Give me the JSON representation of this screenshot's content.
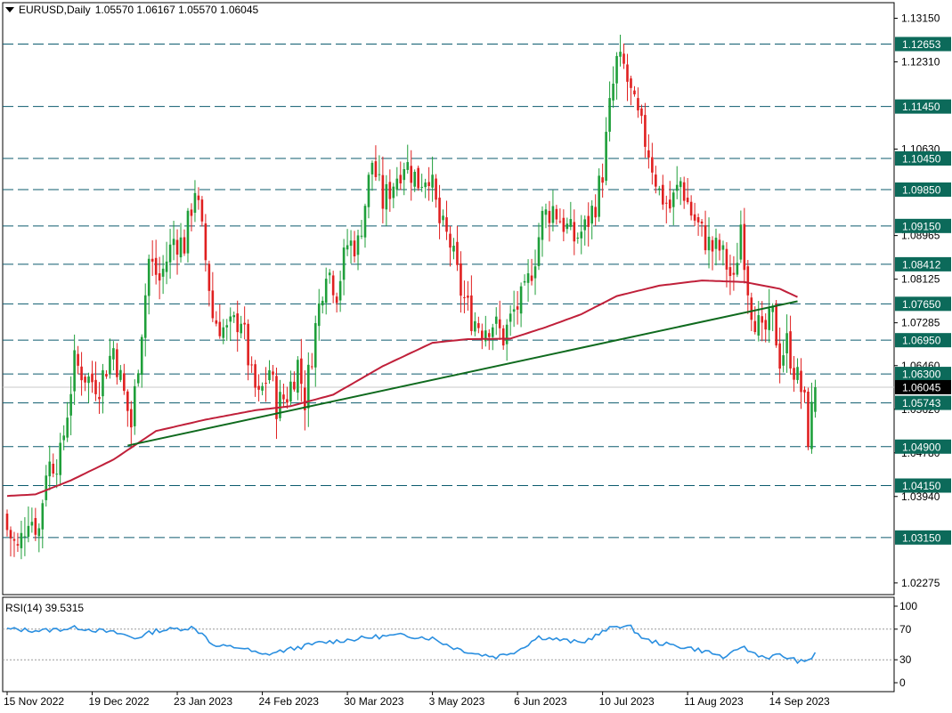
{
  "header": {
    "symbol": "EURUSD,Daily",
    "ohlc": "1.05570 1.06167 1.05570 1.06045"
  },
  "rsi_header": {
    "label": "RSI(14) 39.5315"
  },
  "colors": {
    "bull": "#1f9f3a",
    "bear": "#e02020",
    "ma": "#c0203a",
    "trendline": "#0f6a1e",
    "levels": "#0c5b6e",
    "rsi": "#2a8fe0",
    "level_box": "#0c6a5a",
    "price_box": "#000000"
  },
  "chart_data": [
    {
      "type": "candlestick",
      "title": "EURUSD,Daily",
      "ylim": [
        1.0205,
        1.1345
      ],
      "y_ticks": [
        "1.13150",
        "1.12310",
        "1.10630",
        "1.08965",
        "1.08125",
        "1.07285",
        "1.06460",
        "1.05620",
        "1.04780",
        "1.03940",
        "1.02275"
      ],
      "x_ticks": [
        "15 Nov 2022",
        "19 Dec 2022",
        "23 Jan 2023",
        "24 Feb 2023",
        "30 Mar 2023",
        "3 May 2023",
        "6 Jun 2023",
        "10 Jul 2023",
        "11 Aug 2023",
        "14 Sep 2023"
      ],
      "x_tick_days": [
        0,
        24,
        48,
        72,
        96,
        120,
        144,
        168,
        192,
        216
      ],
      "horizontal_levels": [
        {
          "value": 1.12653,
          "label": "1.12653"
        },
        {
          "value": 1.1145,
          "label": "1.11450"
        },
        {
          "value": 1.1045,
          "label": "1.10450"
        },
        {
          "value": 1.0985,
          "label": "1.09850"
        },
        {
          "value": 1.0915,
          "label": "1.09150"
        },
        {
          "value": 1.08412,
          "label": "1.08412"
        },
        {
          "value": 1.0765,
          "label": "1.07650"
        },
        {
          "value": 1.0695,
          "label": "1.06950"
        },
        {
          "value": 1.063,
          "label": "1.06300"
        },
        {
          "value": 1.05743,
          "label": "1.05743"
        },
        {
          "value": 1.049,
          "label": "1.04900"
        },
        {
          "value": 1.0415,
          "label": "1.04150"
        },
        {
          "value": 1.0315,
          "label": "1.03150"
        }
      ],
      "current_price": {
        "value": 1.06045,
        "label": "1.06045"
      },
      "trendline": {
        "start": {
          "day": 34,
          "price": 1.0492
        },
        "end": {
          "day": 223,
          "price": 1.077
        }
      },
      "moving_average_anchors": [
        {
          "day": 0,
          "price": 1.0395
        },
        {
          "day": 8,
          "price": 1.0398
        },
        {
          "day": 18,
          "price": 1.0425
        },
        {
          "day": 30,
          "price": 1.0465
        },
        {
          "day": 42,
          "price": 1.052
        },
        {
          "day": 56,
          "price": 1.0542
        },
        {
          "day": 70,
          "price": 1.056
        },
        {
          "day": 80,
          "price": 1.0568
        },
        {
          "day": 92,
          "price": 1.059
        },
        {
          "day": 106,
          "price": 1.0645
        },
        {
          "day": 120,
          "price": 1.069
        },
        {
          "day": 130,
          "price": 1.0697
        },
        {
          "day": 142,
          "price": 1.0698
        },
        {
          "day": 152,
          "price": 1.072
        },
        {
          "day": 162,
          "price": 1.0745
        },
        {
          "day": 172,
          "price": 1.078
        },
        {
          "day": 184,
          "price": 1.08
        },
        {
          "day": 196,
          "price": 1.081
        },
        {
          "day": 208,
          "price": 1.0807
        },
        {
          "day": 218,
          "price": 1.0794
        },
        {
          "day": 223,
          "price": 1.0778
        }
      ],
      "close_anchors": [
        {
          "day": 0,
          "price": 1.033
        },
        {
          "day": 3,
          "price": 1.029
        },
        {
          "day": 6,
          "price": 1.036
        },
        {
          "day": 9,
          "price": 1.033
        },
        {
          "day": 11,
          "price": 1.045
        },
        {
          "day": 15,
          "price": 1.047
        },
        {
          "day": 19,
          "price": 1.065
        },
        {
          "day": 23,
          "price": 1.062
        },
        {
          "day": 26,
          "price": 1.061
        },
        {
          "day": 30,
          "price": 1.068
        },
        {
          "day": 33,
          "price": 1.059
        },
        {
          "day": 35,
          "price": 1.053
        },
        {
          "day": 38,
          "price": 1.072
        },
        {
          "day": 40,
          "price": 1.085
        },
        {
          "day": 43,
          "price": 1.081
        },
        {
          "day": 47,
          "price": 1.089
        },
        {
          "day": 50,
          "price": 1.088
        },
        {
          "day": 53,
          "price": 1.099
        },
        {
          "day": 55,
          "price": 1.09
        },
        {
          "day": 57,
          "price": 1.08
        },
        {
          "day": 58,
          "price": 1.074
        },
        {
          "day": 62,
          "price": 1.071
        },
        {
          "day": 66,
          "price": 1.074
        },
        {
          "day": 69,
          "price": 1.062
        },
        {
          "day": 71,
          "price": 1.058
        },
        {
          "day": 74,
          "price": 1.064
        },
        {
          "day": 76,
          "price": 1.057
        },
        {
          "day": 79,
          "price": 1.059
        },
        {
          "day": 82,
          "price": 1.065
        },
        {
          "day": 84,
          "price": 1.058
        },
        {
          "day": 87,
          "price": 1.072
        },
        {
          "day": 90,
          "price": 1.084
        },
        {
          "day": 93,
          "price": 1.079
        },
        {
          "day": 96,
          "price": 1.088
        },
        {
          "day": 99,
          "price": 1.088
        },
        {
          "day": 101,
          "price": 1.096
        },
        {
          "day": 103,
          "price": 1.104
        },
        {
          "day": 106,
          "price": 1.096
        },
        {
          "day": 109,
          "price": 1.1
        },
        {
          "day": 112,
          "price": 1.104
        },
        {
          "day": 116,
          "price": 1.1
        },
        {
          "day": 119,
          "price": 1.102
        },
        {
          "day": 122,
          "price": 1.092
        },
        {
          "day": 125,
          "price": 1.088
        },
        {
          "day": 128,
          "price": 1.079
        },
        {
          "day": 131,
          "price": 1.074
        },
        {
          "day": 134,
          "price": 1.072
        },
        {
          "day": 137,
          "price": 1.073
        },
        {
          "day": 140,
          "price": 1.07
        },
        {
          "day": 143,
          "price": 1.075
        },
        {
          "day": 146,
          "price": 1.078
        },
        {
          "day": 149,
          "price": 1.086
        },
        {
          "day": 151,
          "price": 1.093
        },
        {
          "day": 154,
          "price": 1.095
        },
        {
          "day": 157,
          "price": 1.092
        },
        {
          "day": 160,
          "price": 1.089
        },
        {
          "day": 163,
          "price": 1.091
        },
        {
          "day": 166,
          "price": 1.096
        },
        {
          "day": 168,
          "price": 1.102
        },
        {
          "day": 170,
          "price": 1.114
        },
        {
          "day": 172,
          "price": 1.123
        },
        {
          "day": 174,
          "price": 1.122
        },
        {
          "day": 177,
          "price": 1.114
        },
        {
          "day": 179,
          "price": 1.11
        },
        {
          "day": 181,
          "price": 1.106
        },
        {
          "day": 184,
          "price": 1.098
        },
        {
          "day": 187,
          "price": 1.095
        },
        {
          "day": 190,
          "price": 1.1
        },
        {
          "day": 193,
          "price": 1.094
        },
        {
          "day": 196,
          "price": 1.09
        },
        {
          "day": 199,
          "price": 1.087
        },
        {
          "day": 201,
          "price": 1.087
        },
        {
          "day": 203,
          "price": 1.084
        },
        {
          "day": 205,
          "price": 1.08
        },
        {
          "day": 207,
          "price": 1.092
        },
        {
          "day": 209,
          "price": 1.08
        },
        {
          "day": 210,
          "price": 1.076
        },
        {
          "day": 213,
          "price": 1.07
        },
        {
          "day": 216,
          "price": 1.074
        },
        {
          "day": 218,
          "price": 1.066
        },
        {
          "day": 220,
          "price": 1.069
        },
        {
          "day": 222,
          "price": 1.064
        },
        {
          "day": 224,
          "price": 1.06
        },
        {
          "day": 225,
          "price": 1.057
        },
        {
          "day": 226,
          "price": 1.051
        },
        {
          "day": 227,
          "price": 1.0557
        },
        {
          "day": 228,
          "price": 1.06045
        }
      ]
    },
    {
      "type": "line",
      "title": "RSI(14) 39.5315",
      "ylim": [
        0,
        100
      ],
      "y_ticks": [
        "100",
        "70",
        "30",
        "0"
      ],
      "levels": [
        70,
        30
      ],
      "current_value": 39.5315,
      "anchors": [
        {
          "day": 0,
          "value": 70
        },
        {
          "day": 10,
          "value": 68
        },
        {
          "day": 20,
          "value": 72
        },
        {
          "day": 32,
          "value": 64
        },
        {
          "day": 36,
          "value": 58
        },
        {
          "day": 42,
          "value": 68
        },
        {
          "day": 52,
          "value": 72
        },
        {
          "day": 56,
          "value": 62
        },
        {
          "day": 58,
          "value": 48
        },
        {
          "day": 66,
          "value": 46
        },
        {
          "day": 72,
          "value": 36
        },
        {
          "day": 80,
          "value": 44
        },
        {
          "day": 88,
          "value": 52
        },
        {
          "day": 96,
          "value": 56
        },
        {
          "day": 104,
          "value": 60
        },
        {
          "day": 112,
          "value": 62
        },
        {
          "day": 120,
          "value": 58
        },
        {
          "day": 126,
          "value": 46
        },
        {
          "day": 132,
          "value": 38
        },
        {
          "day": 138,
          "value": 34
        },
        {
          "day": 144,
          "value": 42
        },
        {
          "day": 150,
          "value": 60
        },
        {
          "day": 156,
          "value": 56
        },
        {
          "day": 162,
          "value": 52
        },
        {
          "day": 168,
          "value": 66
        },
        {
          "day": 172,
          "value": 75
        },
        {
          "day": 176,
          "value": 72
        },
        {
          "day": 180,
          "value": 56
        },
        {
          "day": 186,
          "value": 50
        },
        {
          "day": 192,
          "value": 46
        },
        {
          "day": 198,
          "value": 40
        },
        {
          "day": 203,
          "value": 32
        },
        {
          "day": 207,
          "value": 48
        },
        {
          "day": 210,
          "value": 40
        },
        {
          "day": 214,
          "value": 33
        },
        {
          "day": 218,
          "value": 36
        },
        {
          "day": 222,
          "value": 30
        },
        {
          "day": 225,
          "value": 26
        },
        {
          "day": 227,
          "value": 33
        },
        {
          "day": 228,
          "value": 39.5
        }
      ]
    }
  ]
}
